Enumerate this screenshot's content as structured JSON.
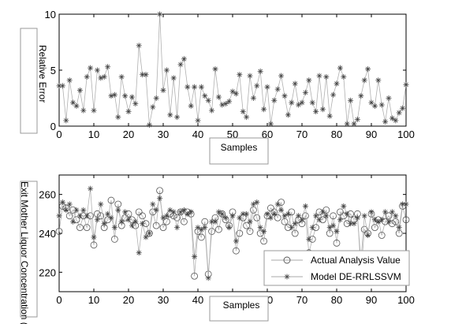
{
  "chart_data": [
    {
      "type": "line",
      "xlabel": "Samples",
      "ylabel": "Relative Error",
      "xlim": [
        0,
        100
      ],
      "ylim": [
        0,
        10
      ],
      "xticks": [
        "0",
        "10",
        "20",
        "30",
        "40",
        "50",
        "60",
        "70",
        "80",
        "90",
        "100"
      ],
      "yticks": [
        "0",
        "5",
        "10"
      ],
      "series": [
        {
          "marker": "star",
          "color": "#555555",
          "x": [
            0,
            1,
            2,
            3,
            4,
            5,
            6,
            7,
            8,
            9,
            10,
            11,
            12,
            13,
            14,
            15,
            16,
            17,
            18,
            19,
            20,
            21,
            22,
            23,
            24,
            25,
            26,
            27,
            28,
            29,
            30,
            31,
            32,
            33,
            34,
            35,
            36,
            37,
            38,
            39,
            40,
            41,
            42,
            43,
            44,
            45,
            46,
            47,
            48,
            49,
            50,
            51,
            52,
            53,
            54,
            55,
            56,
            57,
            58,
            59,
            60,
            61,
            62,
            63,
            64,
            65,
            66,
            67,
            68,
            69,
            70,
            71,
            72,
            73,
            74,
            75,
            76,
            77,
            78,
            79,
            80,
            81,
            82,
            83,
            84,
            85,
            86,
            87,
            88,
            89,
            90,
            91,
            92,
            93,
            94,
            95,
            96,
            97,
            98,
            99,
            100
          ],
          "values": [
            3.6,
            3.6,
            0.5,
            4.1,
            2.1,
            1.8,
            3.2,
            1.4,
            4.4,
            5.2,
            1.4,
            5.0,
            4.3,
            4.4,
            5.3,
            2.7,
            2.8,
            0.8,
            4.4,
            2.7,
            1.3,
            2.6,
            2.0,
            7.2,
            4.6,
            4.6,
            0.1,
            1.7,
            2.5,
            10.0,
            3.2,
            5.0,
            1.0,
            4.3,
            0.8,
            5.5,
            6.0,
            3.5,
            1.8,
            3.5,
            0.5,
            3.5,
            2.7,
            2.3,
            1.4,
            5.1,
            2.6,
            1.9,
            2.0,
            2.2,
            3.1,
            2.9,
            4.6,
            1.3,
            0.8,
            4.5,
            2.5,
            3.6,
            4.9,
            1.5,
            3.5,
            0.2,
            2.3,
            3.3,
            4.5,
            2.7,
            1.0,
            2.1,
            3.8,
            1.9,
            2.1,
            3.0,
            4.1,
            2.1,
            1.3,
            4.5,
            1.5,
            4.4,
            0.9,
            2.8,
            3.8,
            5.2,
            4.4,
            0.2,
            2.3,
            0.2,
            0.6,
            2.7,
            4.1,
            5.1,
            2.1,
            1.8,
            4.1,
            1.9,
            0.4,
            2.5,
            0.7,
            0.5,
            1.2,
            1.6,
            3.7
          ]
        }
      ]
    },
    {
      "type": "line",
      "xlabel": "Samples",
      "ylabel": "Exit Mother Liquor Concentration (g/l)",
      "xlim": [
        0,
        100
      ],
      "ylim": [
        210,
        270
      ],
      "xticks": [
        "0",
        "10",
        "20",
        "30",
        "40",
        "50",
        "60",
        "70",
        "80",
        "90",
        "100"
      ],
      "yticks": [
        "220",
        "240",
        "260"
      ],
      "legend": "bottom-right",
      "series": [
        {
          "name": "Actual Analysis Value",
          "marker": "circle",
          "color": "#555555",
          "x": [
            0,
            1,
            2,
            3,
            4,
            5,
            6,
            7,
            8,
            9,
            10,
            11,
            12,
            13,
            14,
            15,
            16,
            17,
            18,
            19,
            20,
            21,
            22,
            23,
            24,
            25,
            26,
            27,
            28,
            29,
            30,
            31,
            32,
            33,
            34,
            35,
            36,
            37,
            38,
            39,
            40,
            41,
            42,
            43,
            44,
            45,
            46,
            47,
            48,
            49,
            50,
            51,
            52,
            53,
            54,
            55,
            56,
            57,
            58,
            59,
            60,
            61,
            62,
            63,
            64,
            65,
            66,
            67,
            68,
            69,
            70,
            71,
            72,
            73,
            74,
            75,
            76,
            77,
            78,
            79,
            80,
            81,
            82,
            83,
            84,
            85,
            86,
            87,
            88,
            89,
            90,
            91,
            92,
            93,
            94,
            95,
            96,
            97,
            98,
            99,
            100
          ],
          "values": [
            241,
            254,
            253,
            249,
            252,
            247,
            243,
            249,
            243,
            249,
            234,
            250,
            249,
            243,
            247,
            257,
            237,
            255,
            244,
            248,
            250,
            247,
            244,
            251,
            249,
            245,
            240,
            251,
            244,
            262,
            243,
            246,
            250,
            249,
            248,
            251,
            246,
            251,
            250,
            218,
            241,
            238,
            246,
            219,
            241,
            248,
            242,
            250,
            247,
            244,
            251,
            231,
            240,
            248,
            244,
            241,
            252,
            248,
            240,
            236,
            249,
            253,
            251,
            248,
            256,
            246,
            243,
            251,
            240,
            247,
            245,
            249,
            230,
            237,
            243,
            251,
            247,
            252,
            240,
            249,
            235,
            251,
            249,
            245,
            250,
            247,
            250,
            220,
            242,
            240,
            250,
            243,
            247,
            239,
            246,
            249,
            245,
            246,
            240,
            254,
            247
          ]
        },
        {
          "name": "Model DE-RRLSSVM",
          "marker": "star",
          "color": "#555555",
          "x": [
            0,
            1,
            2,
            3,
            4,
            5,
            6,
            7,
            8,
            9,
            10,
            11,
            12,
            13,
            14,
            15,
            16,
            17,
            18,
            19,
            20,
            21,
            22,
            23,
            24,
            25,
            26,
            27,
            28,
            29,
            30,
            31,
            32,
            33,
            34,
            35,
            36,
            37,
            38,
            39,
            40,
            41,
            42,
            43,
            44,
            45,
            46,
            47,
            48,
            49,
            50,
            51,
            52,
            53,
            54,
            55,
            56,
            57,
            58,
            59,
            60,
            61,
            62,
            63,
            64,
            65,
            66,
            67,
            68,
            69,
            70,
            71,
            72,
            73,
            74,
            75,
            76,
            77,
            78,
            79,
            80,
            81,
            82,
            83,
            84,
            85,
            86,
            87,
            88,
            89,
            90,
            91,
            92,
            93,
            94,
            95,
            96,
            97,
            98,
            99,
            100
          ],
          "values": [
            249,
            256,
            252,
            255,
            246,
            252,
            249,
            252,
            249,
            263,
            238,
            247,
            255,
            245,
            250,
            248,
            243,
            252,
            246,
            251,
            247,
            244,
            246,
            230,
            245,
            238,
            240,
            255,
            252,
            258,
            248,
            249,
            252,
            251,
            243,
            251,
            252,
            250,
            251,
            228,
            243,
            242,
            243,
            217,
            246,
            246,
            251,
            250,
            248,
            243,
            249,
            236,
            248,
            250,
            250,
            246,
            255,
            256,
            243,
            241,
            250,
            248,
            250,
            255,
            252,
            249,
            250,
            243,
            245,
            249,
            247,
            254,
            237,
            243,
            249,
            247,
            251,
            249,
            243,
            244,
            241,
            247,
            254,
            250,
            245,
            245,
            248,
            226,
            249,
            239,
            251,
            247,
            246,
            247,
            251,
            246,
            251,
            249,
            243,
            255,
            255
          ]
        }
      ]
    }
  ]
}
